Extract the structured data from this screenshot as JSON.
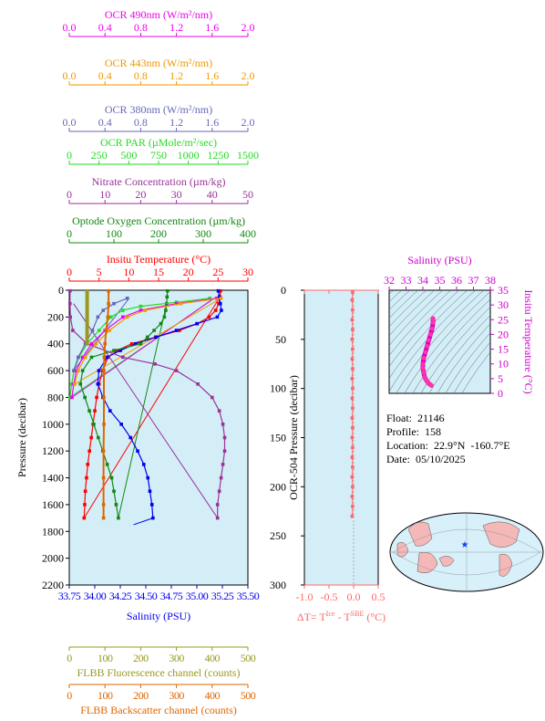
{
  "colors": {
    "ocr490": "#ee00ee",
    "ocr443": "#ee9900",
    "ocr380": "#6666bb",
    "par": "#22dd22",
    "nitrate": "#993399",
    "oxygen": "#118811",
    "temperature": "#ff0000",
    "salinity": "#0000ee",
    "fluorescence": "#999922",
    "backscatter": "#dd6600",
    "panel_bg": "#d4eef8",
    "deltaT": "#ff6666",
    "ts_axis": "#cc00cc"
  },
  "info": {
    "float_label": "Float:",
    "float_value": "21146",
    "profile_label": "Profile:",
    "profile_value": "158",
    "location_label": "Location:",
    "location_value": "22.9°N  -160.7°E",
    "date_label": "Date:",
    "date_value": "05/10/2025"
  },
  "chart_data": [
    {
      "type": "line",
      "title": "",
      "ylabel": "Pressure (decibar)",
      "ylim": [
        2200,
        0
      ],
      "y_ticks": [
        0,
        200,
        400,
        600,
        800,
        1000,
        1200,
        1400,
        1600,
        1800,
        2000,
        2200
      ],
      "axes": [
        {
          "key": "ocr490",
          "label": "OCR 490nm (W/m²/nm)",
          "position": "top",
          "lim": [
            0,
            2
          ],
          "ticks": [
            "0.0",
            "0.4",
            "0.8",
            "1.2",
            "1.6",
            "2.0"
          ]
        },
        {
          "key": "ocr443",
          "label": "OCR 443nm (W/m²/nm)",
          "position": "top",
          "lim": [
            0,
            2
          ],
          "ticks": [
            "0.0",
            "0.4",
            "0.8",
            "1.2",
            "1.6",
            "2.0"
          ]
        },
        {
          "key": "ocr380",
          "label": "OCR 380nm (W/m²/nm)",
          "position": "top",
          "lim": [
            0,
            2
          ],
          "ticks": [
            "0.0",
            "0.4",
            "0.8",
            "1.2",
            "1.6",
            "2.0"
          ]
        },
        {
          "key": "par",
          "label": "OCR PAR (µMole/m²/sec)",
          "position": "top",
          "lim": [
            0,
            1500
          ],
          "ticks": [
            "0",
            "250",
            "500",
            "750",
            "1000",
            "1250",
            "1500"
          ]
        },
        {
          "key": "nitrate",
          "label": "Nitrate Concentration (µm/kg)",
          "position": "top",
          "lim": [
            0,
            50
          ],
          "ticks": [
            "0",
            "10",
            "20",
            "30",
            "40",
            "50"
          ]
        },
        {
          "key": "oxygen",
          "label": "Optode Oxygen Concentration (µm/kg)",
          "position": "top",
          "lim": [
            0,
            400
          ],
          "ticks": [
            "0",
            "100",
            "200",
            "300",
            "400"
          ]
        },
        {
          "key": "temperature",
          "label": "Insitu Temperature (°C)",
          "position": "top",
          "lim": [
            0,
            30
          ],
          "ticks": [
            "0",
            "5",
            "10",
            "15",
            "20",
            "25",
            "30"
          ]
        },
        {
          "key": "salinity",
          "label": "Salinity (PSU)",
          "position": "bottom",
          "lim": [
            33.75,
            35.5
          ],
          "ticks": [
            "33.75",
            "34.00",
            "34.25",
            "34.50",
            "34.75",
            "35.00",
            "35.25",
            "35.50"
          ]
        },
        {
          "key": "fluorescence",
          "label": "FLBB Fluorescence channel (counts)",
          "position": "bottom",
          "lim": [
            0,
            500
          ],
          "ticks": [
            "0",
            "100",
            "200",
            "300",
            "400",
            "500"
          ]
        },
        {
          "key": "backscatter",
          "label": "FLBB Backscatter channel (counts)",
          "position": "bottom",
          "lim": [
            0,
            500
          ],
          "ticks": [
            "0",
            "100",
            "200",
            "300",
            "400",
            "500"
          ]
        }
      ],
      "series": [
        {
          "key": "temperature",
          "points": [
            [
              25.4,
              5
            ],
            [
              25.3,
              50
            ],
            [
              25.1,
              100
            ],
            [
              24.6,
              150
            ],
            [
              23.5,
              200
            ],
            [
              21.5,
              250
            ],
            [
              18.5,
              300
            ],
            [
              14.5,
              350
            ],
            [
              10.5,
              400
            ],
            [
              8.0,
              450
            ],
            [
              6.5,
              500
            ],
            [
              5.6,
              600
            ],
            [
              5.0,
              700
            ],
            [
              4.6,
              800
            ],
            [
              4.3,
              900
            ],
            [
              4.0,
              1000
            ],
            [
              3.7,
              1100
            ],
            [
              3.4,
              1200
            ],
            [
              3.1,
              1300
            ],
            [
              2.9,
              1400
            ],
            [
              2.7,
              1500
            ],
            [
              2.6,
              1600
            ],
            [
              2.5,
              1700
            ]
          ]
        },
        {
          "key": "salinity",
          "points": [
            [
              35.21,
              5
            ],
            [
              35.22,
              50
            ],
            [
              35.23,
              100
            ],
            [
              35.24,
              150
            ],
            [
              35.2,
              200
            ],
            [
              35.0,
              250
            ],
            [
              34.8,
              300
            ],
            [
              34.6,
              350
            ],
            [
              34.4,
              400
            ],
            [
              34.25,
              450
            ],
            [
              34.12,
              500
            ],
            [
              34.04,
              600
            ],
            [
              34.03,
              700
            ],
            [
              34.08,
              800
            ],
            [
              34.15,
              900
            ],
            [
              34.26,
              1000
            ],
            [
              34.35,
              1100
            ],
            [
              34.42,
              1200
            ],
            [
              34.48,
              1300
            ],
            [
              34.52,
              1400
            ],
            [
              34.54,
              1500
            ],
            [
              34.56,
              1600
            ],
            [
              34.57,
              1700
            ]
          ]
        },
        {
          "key": "oxygen",
          "points": [
            [
              220,
              5
            ],
            [
              219,
              50
            ],
            [
              218,
              100
            ],
            [
              216,
              150
            ],
            [
              213,
              200
            ],
            [
              205,
              250
            ],
            [
              190,
              300
            ],
            [
              175,
              350
            ],
            [
              160,
              400
            ],
            [
              100,
              450
            ],
            [
              50,
              500
            ],
            [
              30,
              600
            ],
            [
              25,
              700
            ],
            [
              35,
              800
            ],
            [
              45,
              900
            ],
            [
              55,
              1000
            ],
            [
              65,
              1100
            ],
            [
              75,
              1200
            ],
            [
              85,
              1300
            ],
            [
              95,
              1400
            ],
            [
              100,
              1500
            ],
            [
              105,
              1600
            ],
            [
              110,
              1700
            ]
          ]
        },
        {
          "key": "nitrate",
          "points": [
            [
              0.2,
              5
            ],
            [
              0.2,
              100
            ],
            [
              0.3,
              200
            ],
            [
              1.0,
              300
            ],
            [
              5.0,
              400
            ],
            [
              15.0,
              500
            ],
            [
              24.0,
              550
            ],
            [
              30.0,
              600
            ],
            [
              36.0,
              700
            ],
            [
              40.0,
              800
            ],
            [
              42.0,
              900
            ],
            [
              43.0,
              1000
            ],
            [
              43.5,
              1100
            ],
            [
              43.5,
              1200
            ],
            [
              43.0,
              1300
            ],
            [
              42.5,
              1400
            ],
            [
              42.0,
              1500
            ],
            [
              41.5,
              1600
            ],
            [
              41.5,
              1700
            ]
          ]
        },
        {
          "key": "par",
          "points": [
            [
              1180,
              60
            ],
            [
              900,
              90
            ],
            [
              600,
              120
            ],
            [
              450,
              150
            ],
            [
              350,
              200
            ],
            [
              250,
              300
            ],
            [
              150,
              400
            ],
            [
              80,
              500
            ],
            [
              40,
              600
            ],
            [
              20,
              700
            ],
            [
              5,
              800
            ]
          ]
        },
        {
          "key": "ocr490",
          "points": [
            [
              1.65,
              60
            ],
            [
              1.2,
              100
            ],
            [
              0.8,
              150
            ],
            [
              0.6,
              200
            ],
            [
              0.4,
              300
            ],
            [
              0.25,
              400
            ],
            [
              0.15,
              500
            ],
            [
              0.08,
              600
            ],
            [
              0.05,
              700
            ],
            [
              0.03,
              800
            ]
          ]
        },
        {
          "key": "ocr443",
          "points": [
            [
              1.7,
              60
            ],
            [
              1.25,
              100
            ],
            [
              0.85,
              150
            ],
            [
              0.65,
              200
            ],
            [
              0.45,
              300
            ],
            [
              0.3,
              400
            ],
            [
              0.18,
              500
            ],
            [
              0.1,
              600
            ],
            [
              0.06,
              700
            ]
          ]
        },
        {
          "key": "ocr380",
          "points": [
            [
              0.65,
              60
            ],
            [
              0.5,
              100
            ],
            [
              0.38,
              150
            ],
            [
              0.32,
              200
            ],
            [
              0.26,
              300
            ],
            [
              0.18,
              400
            ],
            [
              0.1,
              500
            ],
            [
              0.05,
              600
            ]
          ]
        },
        {
          "key": "backscatter",
          "points": [
            [
              110,
              5
            ],
            [
              110,
              100
            ],
            [
              108,
              200
            ],
            [
              103,
              300
            ],
            [
              100,
              400
            ],
            [
              98,
              500
            ],
            [
              97,
              600
            ],
            [
              97,
              800
            ],
            [
              97,
              1000
            ],
            [
              96,
              1200
            ],
            [
              96,
              1400
            ],
            [
              96,
              1600
            ],
            [
              96,
              1700
            ]
          ]
        },
        {
          "key": "fluorescence",
          "points": [
            [
              50,
              5
            ],
            [
              50,
              100
            ],
            [
              50,
              200
            ],
            [
              50,
              300
            ],
            [
              50,
              400
            ]
          ]
        }
      ],
      "connectors": [
        {
          "key": "temperature",
          "from": [
            2.5,
            1700
          ],
          "to": [
            25.3,
            50
          ]
        },
        {
          "key": "oxygen",
          "from": [
            110,
            1700
          ],
          "to": [
            218,
            100
          ]
        },
        {
          "key": "salinity",
          "from": [
            34.57,
            1700
          ],
          "to": [
            34.38,
            1750
          ]
        },
        {
          "key": "par",
          "from": [
            5,
            800
          ],
          "to": [
            1220,
            60
          ]
        },
        {
          "key": "ocr490",
          "from": [
            0.03,
            800
          ],
          "to": [
            1.62,
            60
          ]
        },
        {
          "key": "ocr443",
          "from": [
            0.06,
            700
          ],
          "to": [
            1.7,
            60
          ]
        },
        {
          "key": "ocr380",
          "from": [
            0.05,
            600
          ],
          "to": [
            0.67,
            60
          ]
        },
        {
          "key": "nitrate",
          "from": [
            41.5,
            1700
          ],
          "to": [
            1.2,
            100
          ]
        }
      ]
    },
    {
      "type": "scatter",
      "title": "",
      "xlabel": "ΔT= T^Ice - T^SBE (°C)",
      "xlabel_main": "ΔT= T",
      "xlabel_sup1": "Ice",
      "xlabel_mid": " - T",
      "xlabel_sup2": "SBE",
      "xlabel_end": " (°C)",
      "ylabel": "OCR-504 Pressure (decibar)",
      "xlim": [
        -1.0,
        0.5
      ],
      "ylim": [
        300,
        0
      ],
      "x_ticks": [
        "-1.0",
        "-0.5",
        "0.0",
        "0.5"
      ],
      "y_ticks": [
        "0",
        "50",
        "100",
        "150",
        "200",
        "250",
        "300"
      ],
      "points": [
        [
          -0.02,
          2
        ],
        [
          -0.03,
          10
        ],
        [
          -0.02,
          20
        ],
        [
          -0.03,
          30
        ],
        [
          -0.02,
          40
        ],
        [
          -0.03,
          50
        ],
        [
          -0.02,
          60
        ],
        [
          -0.03,
          70
        ],
        [
          -0.02,
          80
        ],
        [
          -0.03,
          90
        ],
        [
          -0.02,
          100
        ],
        [
          -0.03,
          110
        ],
        [
          -0.02,
          120
        ],
        [
          -0.03,
          130
        ],
        [
          -0.02,
          140
        ],
        [
          -0.03,
          150
        ],
        [
          -0.02,
          160
        ],
        [
          -0.03,
          170
        ],
        [
          -0.02,
          180
        ],
        [
          -0.03,
          190
        ],
        [
          -0.02,
          200
        ],
        [
          -0.03,
          210
        ],
        [
          -0.02,
          220
        ],
        [
          -0.03,
          230
        ]
      ]
    },
    {
      "type": "scatter",
      "title": "",
      "xlabel": "Salinity (PSU)",
      "ylabel": "Insitu Temperature (°C)",
      "xlim": [
        32,
        38
      ],
      "ylim": [
        0,
        35
      ],
      "x_ticks": [
        "32",
        "33",
        "34",
        "35",
        "36",
        "37",
        "38"
      ],
      "y_ticks": [
        "0",
        "5",
        "10",
        "15",
        "20",
        "25",
        "30",
        "35"
      ],
      "points": [
        [
          34.6,
          25.4
        ],
        [
          34.6,
          24.0
        ],
        [
          34.55,
          22.0
        ],
        [
          34.45,
          20.0
        ],
        [
          34.35,
          18.0
        ],
        [
          34.25,
          16.0
        ],
        [
          34.15,
          14.0
        ],
        [
          34.05,
          12.0
        ],
        [
          34.0,
          10.0
        ],
        [
          34.0,
          8.5
        ],
        [
          34.05,
          7.0
        ],
        [
          34.1,
          5.5
        ],
        [
          34.2,
          4.5
        ],
        [
          34.3,
          3.7
        ],
        [
          34.4,
          3.1
        ],
        [
          34.5,
          2.7
        ]
      ]
    }
  ]
}
